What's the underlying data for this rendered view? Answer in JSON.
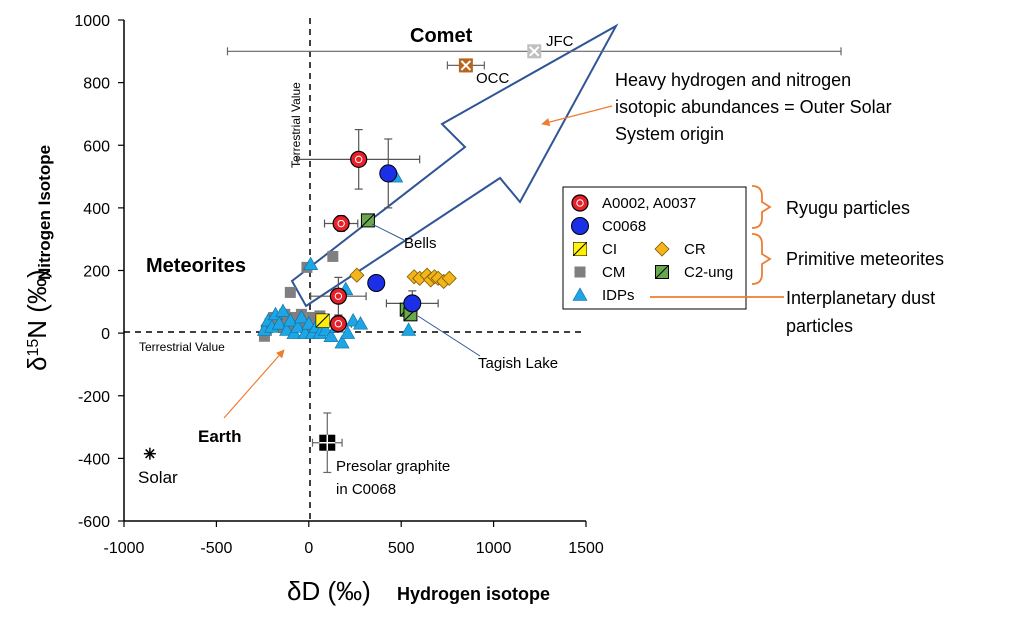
{
  "chart_data": {
    "type": "scatter",
    "x_axis": {
      "label_symbol": "δD (‰)",
      "label_name": "Hydrogen isotope",
      "range": [
        -1000,
        1500
      ],
      "ticks": [
        "-1000",
        "-500",
        "0",
        "500",
        "1000",
        "1500"
      ]
    },
    "y_axis": {
      "label_symbol": "δ15N (‰)",
      "label_name": "Nitrogen Isotope",
      "range": [
        -600,
        1000
      ],
      "ticks": [
        "-600",
        "-400",
        "-200",
        "0",
        "200",
        "400",
        "600",
        "800",
        "1000"
      ]
    },
    "terrestrial_lines": {
      "x_value": 0,
      "y_value": 0,
      "vertical_label": "Terrestrial Value",
      "horizontal_label": "Terrestrial Value"
    },
    "series": [
      {
        "name": "A0002, A0037",
        "marker": "circle-dot",
        "color": "#e8202a",
        "points": [
          {
            "x": 270,
            "y": 555,
            "xerr": 330,
            "yerr": 95
          },
          {
            "x": 175,
            "y": 350,
            "xerr": 90,
            "yerr": 25
          },
          {
            "x": 160,
            "y": 118,
            "xerr": 150,
            "yerr": 60
          },
          {
            "x": 160,
            "y": 30,
            "xerr": 70,
            "yerr": 25
          }
        ]
      },
      {
        "name": "C0068",
        "marker": "circle",
        "color": "#1a2fe6",
        "points": [
          {
            "x": 430,
            "y": 510,
            "yerr": 110
          },
          {
            "x": 365,
            "y": 160
          },
          {
            "x": 560,
            "y": 95,
            "xerr": 140,
            "yerr": 40
          }
        ]
      },
      {
        "name": "CI",
        "marker": "square-half",
        "color": "#ffee00",
        "points": [
          {
            "x": 75,
            "y": 40
          }
        ]
      },
      {
        "name": "CR",
        "marker": "diamond",
        "color": "#f4b41a",
        "points": [
          {
            "x": 260,
            "y": 185
          },
          {
            "x": 570,
            "y": 180
          },
          {
            "x": 600,
            "y": 175
          },
          {
            "x": 640,
            "y": 185
          },
          {
            "x": 660,
            "y": 170
          },
          {
            "x": 680,
            "y": 180
          },
          {
            "x": 700,
            "y": 175
          },
          {
            "x": 730,
            "y": 165
          },
          {
            "x": 760,
            "y": 175
          }
        ]
      },
      {
        "name": "CM",
        "marker": "square",
        "color": "#7f7f7f",
        "points": [
          {
            "x": -240,
            "y": -10
          },
          {
            "x": -230,
            "y": 10
          },
          {
            "x": -210,
            "y": 30
          },
          {
            "x": -190,
            "y": 50
          },
          {
            "x": -170,
            "y": 20
          },
          {
            "x": -150,
            "y": 40
          },
          {
            "x": -130,
            "y": 60
          },
          {
            "x": -110,
            "y": 30
          },
          {
            "x": -100,
            "y": 130
          },
          {
            "x": -90,
            "y": 50
          },
          {
            "x": -80,
            "y": 20
          },
          {
            "x": -60,
            "y": 40
          },
          {
            "x": -40,
            "y": 60
          },
          {
            "x": -20,
            "y": 30
          },
          {
            "x": 0,
            "y": 10
          },
          {
            "x": -10,
            "y": 210
          },
          {
            "x": 20,
            "y": 50
          },
          {
            "x": 40,
            "y": 30
          },
          {
            "x": 130,
            "y": 245
          },
          {
            "x": 60,
            "y": 55
          }
        ]
      },
      {
        "name": "C2-ung",
        "marker": "square-diag",
        "color": "#6aa84f",
        "points": [
          {
            "x": 320,
            "y": 360
          },
          {
            "x": 530,
            "y": 75
          },
          {
            "x": 550,
            "y": 60
          }
        ]
      },
      {
        "name": "IDPs",
        "marker": "triangle",
        "color": "#1ea5e6",
        "points": [
          {
            "x": 470,
            "y": 500
          },
          {
            "x": 10,
            "y": 220
          },
          {
            "x": 200,
            "y": 140
          },
          {
            "x": -240,
            "y": 10
          },
          {
            "x": -220,
            "y": 40
          },
          {
            "x": -200,
            "y": 20
          },
          {
            "x": -180,
            "y": 60
          },
          {
            "x": -160,
            "y": 30
          },
          {
            "x": -140,
            "y": 70
          },
          {
            "x": -120,
            "y": 10
          },
          {
            "x": -100,
            "y": 40
          },
          {
            "x": -80,
            "y": 0
          },
          {
            "x": -60,
            "y": 20
          },
          {
            "x": -40,
            "y": 50
          },
          {
            "x": -20,
            "y": 0
          },
          {
            "x": 0,
            "y": 30
          },
          {
            "x": 20,
            "y": 0
          },
          {
            "x": 40,
            "y": 20
          },
          {
            "x": 60,
            "y": 0
          },
          {
            "x": 90,
            "y": 10
          },
          {
            "x": 120,
            "y": -10
          },
          {
            "x": 150,
            "y": 20
          },
          {
            "x": 180,
            "y": -30
          },
          {
            "x": 210,
            "y": 0
          },
          {
            "x": 240,
            "y": 40
          },
          {
            "x": 280,
            "y": 30
          },
          {
            "x": 540,
            "y": 10
          }
        ]
      }
    ],
    "special_points": [
      {
        "name": "JFC",
        "x": 1220,
        "y": 900,
        "xerr": 1660,
        "color": "#bfbfbf"
      },
      {
        "name": "OCC",
        "x": 850,
        "y": 855,
        "xerr": 100,
        "yerr": 20,
        "color": "#b8651f"
      },
      {
        "name": "Presolar graphite in C0068",
        "x": 100,
        "y": -350,
        "xerr": 80,
        "yerr": 95,
        "color": "#000000"
      },
      {
        "name": "Solar",
        "x": -860,
        "y": -385,
        "color": "#000000"
      }
    ],
    "region_labels": {
      "comet": "Comet",
      "meteorites": "Meteorites",
      "earth": "Earth",
      "bells": "Bells",
      "tagish_lake": "Tagish Lake",
      "jfc": "JFC",
      "occ": "OCC",
      "presolar_line1": "Presolar graphite",
      "presolar_line2": "in C0068",
      "solar": "Solar"
    },
    "arrow_annotation": {
      "line1": "Heavy hydrogen and nitrogen",
      "line2": "isotopic abundances = Outer Solar",
      "line3": "System origin"
    },
    "legend_groups": {
      "ryugu": "Ryugu particles",
      "primitive": "Primitive meteorites",
      "idp_line1": "Interplanetary dust",
      "idp_line2": "particles"
    },
    "colors": {
      "arrow": "#2f5597",
      "callout": "#ed7d31",
      "terrestrial_lines": "#000000"
    }
  }
}
